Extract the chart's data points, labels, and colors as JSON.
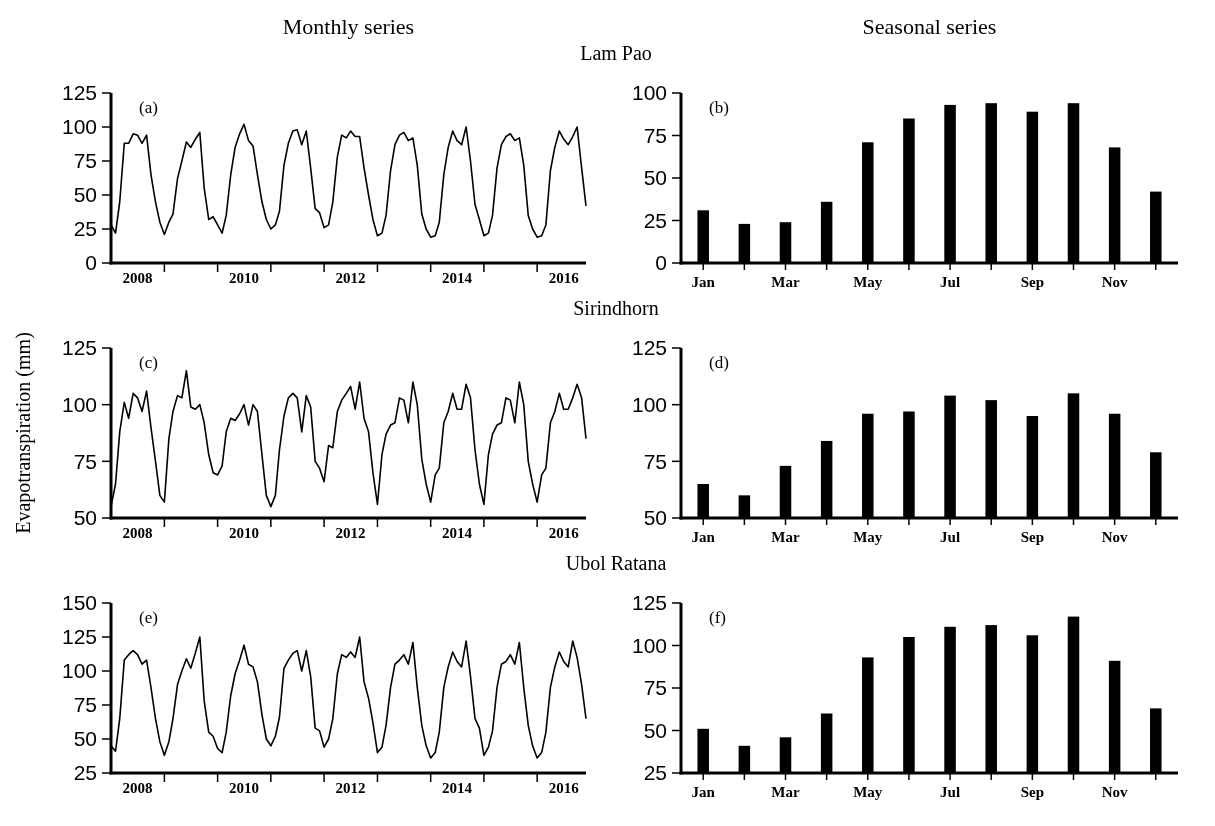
{
  "chart_data": [
    {
      "type": "line",
      "title": "Monthly series",
      "subtitle": "Lam Pao",
      "annotations": [
        "(a)"
      ],
      "color": "#000000",
      "xlim": [
        "2008-01",
        "2016-12"
      ],
      "ylim": [
        0,
        125
      ],
      "yticks": [
        0,
        25,
        50,
        75,
        100,
        125
      ],
      "xticks": [
        {
          "value": "2008-07",
          "label": "2008"
        },
        {
          "value": "2009-01",
          "label": null
        },
        {
          "value": "2010-01",
          "label": null
        },
        {
          "value": "2010-07",
          "label": "2010"
        },
        {
          "value": "2011-01",
          "label": null
        },
        {
          "value": "2012-01",
          "label": null
        },
        {
          "value": "2012-07",
          "label": "2012"
        },
        {
          "value": "2013-01",
          "label": null
        },
        {
          "value": "2014-01",
          "label": null
        },
        {
          "value": "2014-07",
          "label": "2014"
        },
        {
          "value": "2015-01",
          "label": null
        },
        {
          "value": "2016-01",
          "label": null
        },
        {
          "value": "2016-07",
          "label": "2016"
        }
      ],
      "x": [
        "2008-01",
        "2008-02",
        "2008-03",
        "2008-04",
        "2008-05",
        "2008-06",
        "2008-07",
        "2008-08",
        "2008-09",
        "2008-10",
        "2008-11",
        "2008-12",
        "2009-01",
        "2009-02",
        "2009-03",
        "2009-04",
        "2009-05",
        "2009-06",
        "2009-07",
        "2009-08",
        "2009-09",
        "2009-10",
        "2009-11",
        "2009-12",
        "2010-01",
        "2010-02",
        "2010-03",
        "2010-04",
        "2010-05",
        "2010-06",
        "2010-07",
        "2010-08",
        "2010-09",
        "2010-10",
        "2010-11",
        "2010-12",
        "2011-01",
        "2011-02",
        "2011-03",
        "2011-04",
        "2011-05",
        "2011-06",
        "2011-07",
        "2011-08",
        "2011-09",
        "2011-10",
        "2011-11",
        "2011-12",
        "2012-01",
        "2012-02",
        "2012-03",
        "2012-04",
        "2012-05",
        "2012-06",
        "2012-07",
        "2012-08",
        "2012-09",
        "2012-10",
        "2012-11",
        "2012-12",
        "2013-01",
        "2013-02",
        "2013-03",
        "2013-04",
        "2013-05",
        "2013-06",
        "2013-07",
        "2013-08",
        "2013-09",
        "2013-10",
        "2013-11",
        "2013-12",
        "2014-01",
        "2014-02",
        "2014-03",
        "2014-04",
        "2014-05",
        "2014-06",
        "2014-07",
        "2014-08",
        "2014-09",
        "2014-10",
        "2014-11",
        "2014-12",
        "2015-01",
        "2015-02",
        "2015-03",
        "2015-04",
        "2015-05",
        "2015-06",
        "2015-07",
        "2015-08",
        "2015-09",
        "2015-10",
        "2015-11",
        "2015-12",
        "2016-01",
        "2016-02",
        "2016-03",
        "2016-04",
        "2016-05",
        "2016-06",
        "2016-07",
        "2016-08",
        "2016-09",
        "2016-10",
        "2016-11",
        "2016-12"
      ],
      "values": [
        28,
        22,
        45,
        88,
        88,
        95,
        94,
        88,
        94,
        65,
        45,
        30,
        21,
        30,
        36,
        62,
        75,
        89,
        85,
        91,
        96,
        55,
        32,
        34,
        28,
        22,
        35,
        65,
        85,
        95,
        102,
        90,
        86,
        65,
        45,
        32,
        25,
        28,
        38,
        72,
        88,
        97,
        98,
        87,
        97,
        70,
        40,
        37,
        26,
        28,
        45,
        78,
        94,
        92,
        97,
        93,
        93,
        70,
        50,
        32,
        20,
        22,
        35,
        68,
        87,
        94,
        96,
        90,
        92,
        72,
        36,
        25,
        19,
        20,
        30,
        65,
        85,
        97,
        90,
        87,
        100,
        75,
        43,
        32,
        20,
        22,
        35,
        70,
        87,
        93,
        95,
        90,
        92,
        72,
        35,
        25,
        19,
        20,
        28,
        68,
        85,
        97,
        91,
        87,
        93,
        100,
        70,
        42
      ]
    },
    {
      "type": "bar",
      "title": "Seasonal series",
      "annotations": [
        "(b)"
      ],
      "color": "#000000",
      "categories": [
        "Jan",
        null,
        "Mar",
        null,
        "May",
        null,
        "Jul",
        null,
        "Sep",
        null,
        "Nov",
        null
      ],
      "ylim": [
        0,
        100
      ],
      "yticks": [
        0,
        25,
        50,
        75,
        100
      ],
      "values": [
        31,
        23,
        24,
        36,
        71,
        85,
        93,
        94,
        89,
        94,
        68,
        42
      ]
    },
    {
      "type": "line",
      "subtitle": "Sirindhorn",
      "ylabel": "Evapotranspiration (mm)",
      "annotations": [
        "(c)"
      ],
      "color": "#000000",
      "xlim": [
        "2008-01",
        "2016-12"
      ],
      "ylim": [
        50,
        125
      ],
      "yticks": [
        50,
        75,
        100,
        125
      ],
      "xticks": [
        {
          "value": "2008-07",
          "label": "2008"
        },
        {
          "value": "2009-01",
          "label": null
        },
        {
          "value": "2010-01",
          "label": null
        },
        {
          "value": "2010-07",
          "label": "2010"
        },
        {
          "value": "2011-01",
          "label": null
        },
        {
          "value": "2012-01",
          "label": null
        },
        {
          "value": "2012-07",
          "label": "2012"
        },
        {
          "value": "2013-01",
          "label": null
        },
        {
          "value": "2014-01",
          "label": null
        },
        {
          "value": "2014-07",
          "label": "2014"
        },
        {
          "value": "2015-01",
          "label": null
        },
        {
          "value": "2016-01",
          "label": null
        },
        {
          "value": "2016-07",
          "label": "2016"
        }
      ],
      "x": [
        "2008-01",
        "2008-02",
        "2008-03",
        "2008-04",
        "2008-05",
        "2008-06",
        "2008-07",
        "2008-08",
        "2008-09",
        "2008-10",
        "2008-11",
        "2008-12",
        "2009-01",
        "2009-02",
        "2009-03",
        "2009-04",
        "2009-05",
        "2009-06",
        "2009-07",
        "2009-08",
        "2009-09",
        "2009-10",
        "2009-11",
        "2009-12",
        "2010-01",
        "2010-02",
        "2010-03",
        "2010-04",
        "2010-05",
        "2010-06",
        "2010-07",
        "2010-08",
        "2010-09",
        "2010-10",
        "2010-11",
        "2010-12",
        "2011-01",
        "2011-02",
        "2011-03",
        "2011-04",
        "2011-05",
        "2011-06",
        "2011-07",
        "2011-08",
        "2011-09",
        "2011-10",
        "2011-11",
        "2011-12",
        "2012-01",
        "2012-02",
        "2012-03",
        "2012-04",
        "2012-05",
        "2012-06",
        "2012-07",
        "2012-08",
        "2012-09",
        "2012-10",
        "2012-11",
        "2012-12",
        "2013-01",
        "2013-02",
        "2013-03",
        "2013-04",
        "2013-05",
        "2013-06",
        "2013-07",
        "2013-08",
        "2013-09",
        "2013-10",
        "2013-11",
        "2013-12",
        "2014-01",
        "2014-02",
        "2014-03",
        "2014-04",
        "2014-05",
        "2014-06",
        "2014-07",
        "2014-08",
        "2014-09",
        "2014-10",
        "2014-11",
        "2014-12",
        "2015-01",
        "2015-02",
        "2015-03",
        "2015-04",
        "2015-05",
        "2015-06",
        "2015-07",
        "2015-08",
        "2015-09",
        "2015-10",
        "2015-11",
        "2015-12",
        "2016-01",
        "2016-02",
        "2016-03",
        "2016-04",
        "2016-05",
        "2016-06",
        "2016-07",
        "2016-08",
        "2016-09",
        "2016-10",
        "2016-11",
        "2016-12"
      ],
      "values": [
        55,
        65,
        88,
        101,
        94,
        105,
        103,
        97,
        106,
        90,
        75,
        60,
        57,
        85,
        97,
        104,
        103,
        115,
        99,
        98,
        100,
        92,
        78,
        70,
        69,
        73,
        88,
        94,
        93,
        96,
        100,
        91,
        100,
        97,
        78,
        60,
        55,
        60,
        80,
        95,
        103,
        105,
        103,
        88,
        104,
        99,
        75,
        72,
        66,
        82,
        81,
        97,
        102,
        105,
        108,
        98,
        110,
        94,
        88,
        70,
        56,
        78,
        87,
        91,
        92,
        103,
        102,
        92,
        110,
        100,
        76,
        65,
        57,
        69,
        72,
        92,
        97,
        105,
        98,
        98,
        109,
        103,
        80,
        65,
        56,
        78,
        87,
        91,
        92,
        103,
        102,
        92,
        110,
        100,
        75,
        65,
        57,
        69,
        72,
        92,
        97,
        105,
        98,
        98,
        103,
        109,
        103,
        85
      ]
    },
    {
      "type": "bar",
      "annotations": [
        "(d)"
      ],
      "color": "#000000",
      "categories": [
        "Jan",
        null,
        "Mar",
        null,
        "May",
        null,
        "Jul",
        null,
        "Sep",
        null,
        "Nov",
        null
      ],
      "ylim": [
        50,
        125
      ],
      "yticks": [
        50,
        75,
        100,
        125
      ],
      "values": [
        65,
        60,
        73,
        84,
        96,
        97,
        104,
        102,
        95,
        105,
        96,
        79
      ]
    },
    {
      "type": "line",
      "subtitle": "Ubol Ratana",
      "annotations": [
        "(e)"
      ],
      "color": "#000000",
      "xlim": [
        "2008-01",
        "2016-12"
      ],
      "ylim": [
        25,
        150
      ],
      "yticks": [
        25,
        50,
        75,
        100,
        125,
        150
      ],
      "xticks": [
        {
          "value": "2008-07",
          "label": "2008"
        },
        {
          "value": "2009-01",
          "label": null
        },
        {
          "value": "2010-01",
          "label": null
        },
        {
          "value": "2010-07",
          "label": "2010"
        },
        {
          "value": "2011-01",
          "label": null
        },
        {
          "value": "2012-01",
          "label": null
        },
        {
          "value": "2012-07",
          "label": "2012"
        },
        {
          "value": "2013-01",
          "label": null
        },
        {
          "value": "2014-01",
          "label": null
        },
        {
          "value": "2014-07",
          "label": "2014"
        },
        {
          "value": "2015-01",
          "label": null
        },
        {
          "value": "2016-01",
          "label": null
        },
        {
          "value": "2016-07",
          "label": "2016"
        }
      ],
      "x": [
        "2008-01",
        "2008-02",
        "2008-03",
        "2008-04",
        "2008-05",
        "2008-06",
        "2008-07",
        "2008-08",
        "2008-09",
        "2008-10",
        "2008-11",
        "2008-12",
        "2009-01",
        "2009-02",
        "2009-03",
        "2009-04",
        "2009-05",
        "2009-06",
        "2009-07",
        "2009-08",
        "2009-09",
        "2009-10",
        "2009-11",
        "2009-12",
        "2010-01",
        "2010-02",
        "2010-03",
        "2010-04",
        "2010-05",
        "2010-06",
        "2010-07",
        "2010-08",
        "2010-09",
        "2010-10",
        "2010-11",
        "2010-12",
        "2011-01",
        "2011-02",
        "2011-03",
        "2011-04",
        "2011-05",
        "2011-06",
        "2011-07",
        "2011-08",
        "2011-09",
        "2011-10",
        "2011-11",
        "2011-12",
        "2012-01",
        "2012-02",
        "2012-03",
        "2012-04",
        "2012-05",
        "2012-06",
        "2012-07",
        "2012-08",
        "2012-09",
        "2012-10",
        "2012-11",
        "2012-12",
        "2013-01",
        "2013-02",
        "2013-03",
        "2013-04",
        "2013-05",
        "2013-06",
        "2013-07",
        "2013-08",
        "2013-09",
        "2013-10",
        "2013-11",
        "2013-12",
        "2014-01",
        "2014-02",
        "2014-03",
        "2014-04",
        "2014-05",
        "2014-06",
        "2014-07",
        "2014-08",
        "2014-09",
        "2014-10",
        "2014-11",
        "2014-12",
        "2015-01",
        "2015-02",
        "2015-03",
        "2015-04",
        "2015-05",
        "2015-06",
        "2015-07",
        "2015-08",
        "2015-09",
        "2015-10",
        "2015-11",
        "2015-12",
        "2016-01",
        "2016-02",
        "2016-03",
        "2016-04",
        "2016-05",
        "2016-06",
        "2016-07",
        "2016-08",
        "2016-09",
        "2016-10",
        "2016-11",
        "2016-12"
      ],
      "values": [
        45,
        41,
        65,
        108,
        112,
        115,
        112,
        105,
        108,
        88,
        65,
        48,
        38,
        48,
        65,
        90,
        100,
        109,
        102,
        113,
        125,
        78,
        55,
        52,
        43,
        40,
        55,
        82,
        98,
        108,
        119,
        105,
        103,
        92,
        68,
        50,
        45,
        52,
        66,
        102,
        108,
        113,
        115,
        100,
        115,
        96,
        58,
        56,
        44,
        50,
        65,
        98,
        112,
        110,
        114,
        110,
        125,
        92,
        80,
        62,
        40,
        44,
        60,
        88,
        105,
        108,
        112,
        105,
        121,
        88,
        60,
        45,
        36,
        40,
        55,
        88,
        103,
        114,
        107,
        103,
        122,
        96,
        65,
        58,
        38,
        44,
        56,
        88,
        105,
        107,
        112,
        105,
        121,
        88,
        60,
        45,
        36,
        40,
        55,
        88,
        103,
        114,
        107,
        103,
        122,
        110,
        90,
        65
      ]
    },
    {
      "type": "bar",
      "annotations": [
        "(f)"
      ],
      "color": "#000000",
      "categories": [
        "Jan",
        null,
        "Mar",
        null,
        "May",
        null,
        "Jul",
        null,
        "Sep",
        null,
        "Nov",
        null
      ],
      "ylim": [
        25,
        125
      ],
      "yticks": [
        25,
        50,
        75,
        100,
        125
      ],
      "values": [
        51,
        41,
        46,
        60,
        93,
        105,
        111,
        112,
        106,
        117,
        91,
        63
      ]
    }
  ]
}
